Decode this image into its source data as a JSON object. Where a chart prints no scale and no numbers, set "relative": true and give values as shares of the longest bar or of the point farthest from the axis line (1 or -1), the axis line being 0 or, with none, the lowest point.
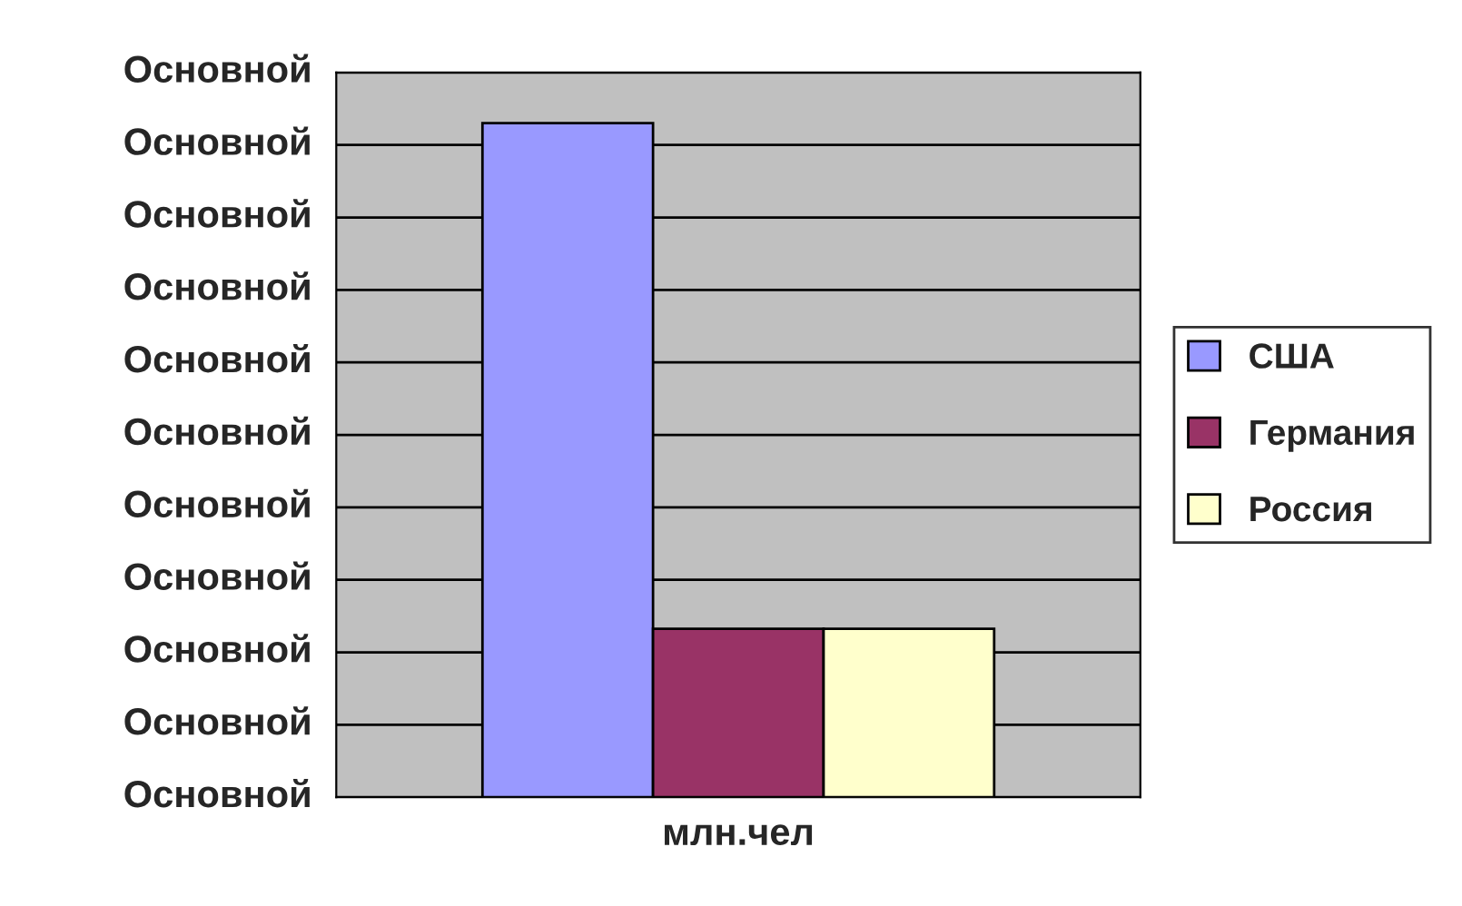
{
  "chart_data": {
    "type": "bar",
    "categories": [
      null
    ],
    "xlabel": "млн.чел",
    "relative": true,
    "series": [
      {
        "name": "США",
        "color": "#9999ff",
        "values": [
          1
        ]
      },
      {
        "name": "Германия",
        "color": "#993366",
        "values": [
          0.25
        ]
      },
      {
        "name": "Россия",
        "color": "#ffffcc",
        "values": [
          0.25
        ]
      }
    ],
    "annotations": [
      "Основной",
      "Основной",
      "Основной",
      "Основной",
      "Основной",
      "Основной",
      "Основной",
      "Основной",
      "Основной",
      "Основной",
      "Основной"
    ],
    "grid": "y",
    "legend": "right"
  }
}
